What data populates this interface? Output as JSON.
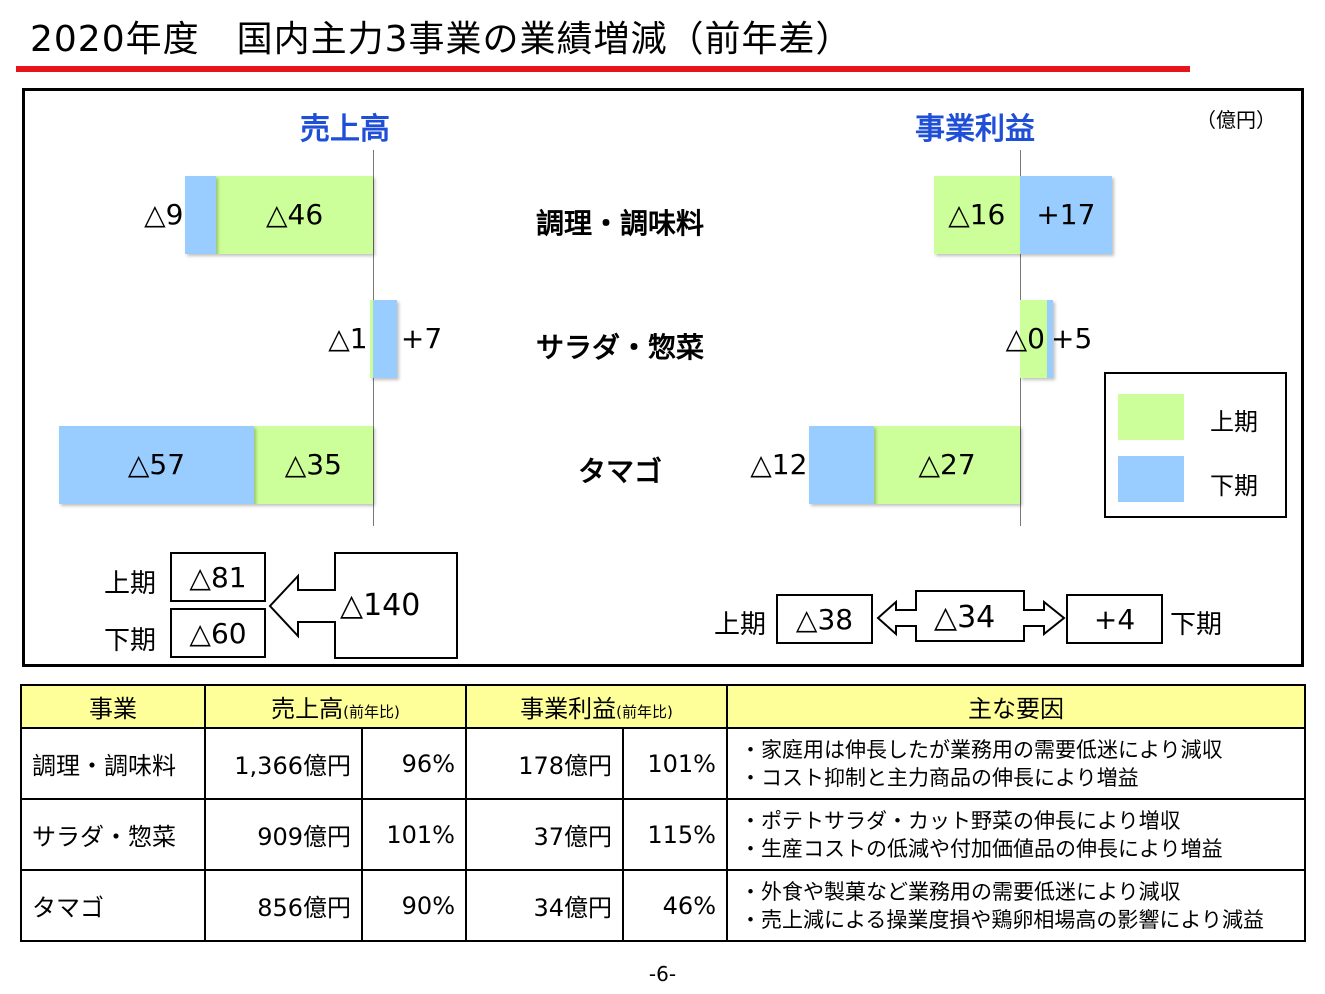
{
  "title": "2020年度　国内主力3事業の業績増減（前年差）",
  "chart_data": {
    "type": "bar",
    "orientation": "horizontal-stacked",
    "unit": "（億円）",
    "categories": [
      "調理・調味料",
      "サラダ・惣菜",
      "タマゴ"
    ],
    "legend": {
      "position": "right",
      "entries": [
        "上期",
        "下期"
      ]
    },
    "colors": {
      "上期": "#ccff99",
      "下期": "#99ccff"
    },
    "panels": [
      {
        "title": "売上高",
        "series": [
          {
            "name": "上期",
            "values": [
              -46,
              -1,
              -35
            ],
            "labels": [
              "△46",
              "△1",
              "△35"
            ]
          },
          {
            "name": "下期",
            "values": [
              -9,
              7,
              -57
            ],
            "labels": [
              "△9",
              "+7",
              "△57"
            ]
          }
        ],
        "total": {
          "label": "△140",
          "h1_label": "上期",
          "h1_value": "△81",
          "h2_label": "下期",
          "h2_value": "△60"
        }
      },
      {
        "title": "事業利益",
        "series": [
          {
            "name": "上期",
            "values": [
              -16,
              5,
              -27
            ],
            "labels": [
              "△16",
              "+5",
              "△27"
            ]
          },
          {
            "name": "下期",
            "values": [
              17,
              0,
              -12
            ],
            "labels": [
              "+17",
              "△0",
              "△12"
            ]
          }
        ],
        "total": {
          "label": "△34",
          "h1_label": "上期",
          "h1_value": "△38",
          "h2_label": "下期",
          "h2_value": "+4"
        }
      }
    ]
  },
  "table": {
    "headers": {
      "business": "事業",
      "sales": "売上高",
      "sales_note": "(前年比)",
      "profit": "事業利益",
      "profit_note": "(前年比)",
      "reasons": "主な要因"
    },
    "rows": [
      {
        "business": "調理・調味料",
        "sales": "1,366億円",
        "sales_ratio": "96%",
        "profit": "178億円",
        "profit_ratio": "101%",
        "reason1": "・家庭用は伸長したが業務用の需要低迷により減収",
        "reason2": "・コスト抑制と主力商品の伸長により増益"
      },
      {
        "business": "サラダ・惣菜",
        "sales": "909億円",
        "sales_ratio": "101%",
        "profit": "37億円",
        "profit_ratio": "115%",
        "reason1": "・ポテトサラダ・カット野菜の伸長により増収",
        "reason2": "・生産コストの低減や付加価値品の伸長により増益"
      },
      {
        "business": "タマゴ",
        "sales": "856億円",
        "sales_ratio": "90%",
        "profit": "34億円",
        "profit_ratio": "46%",
        "reason1": "・外食や製菓など業務用の需要低迷により減収",
        "reason2": "・売上減による操業度損や鶏卵相場高の影響により減益"
      }
    ]
  },
  "page_number": "-6-"
}
